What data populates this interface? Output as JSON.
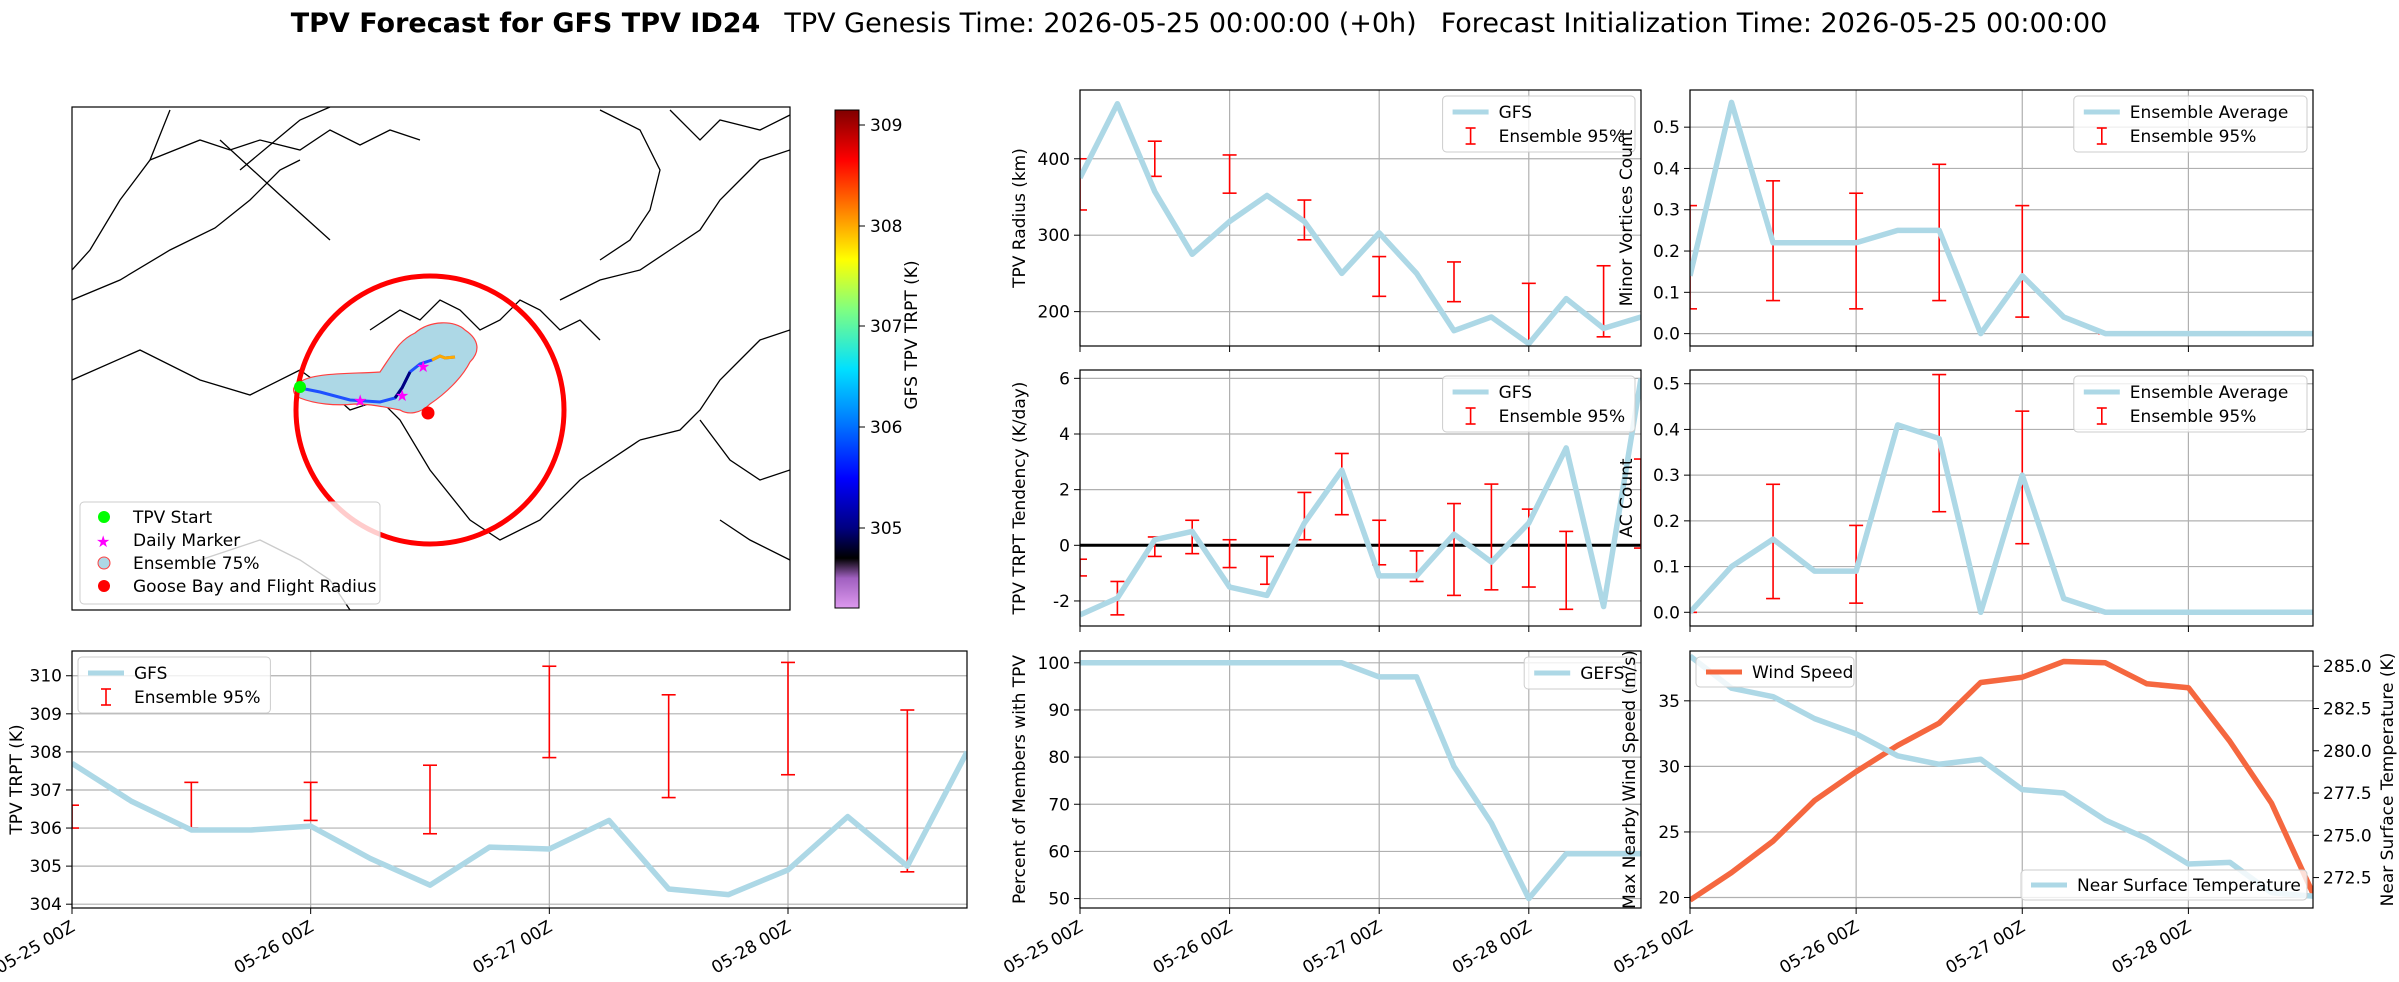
{
  "title": {
    "bold": "TPV Forecast for GFS TPV ID24",
    "genesis": "TPV Genesis Time: 2026-05-25 00:00:00 (+0h)",
    "init": "Forecast Initialization Time: 2026-05-25 00:00:00"
  },
  "colors": {
    "gfs": "#add8e6",
    "ens": "#ff0000",
    "wind": "#f5673f",
    "temp_axis": "#4169e1",
    "cone_fill": "#add8e6",
    "cone_edge": "#ff4040",
    "start_marker": "#00ff00",
    "daily_marker": "#ff00ff",
    "goose": "#ff0000"
  },
  "map_panel": {
    "colorbar_label": "GFS TPV TRPT (K)",
    "colorbar_ticks": [
      "305",
      "306",
      "307",
      "308",
      "309"
    ],
    "legend": [
      "TPV Start",
      "Daily Marker",
      "Ensemble 75%",
      "Goose Bay and Flight Radius"
    ]
  },
  "chart_data": [
    {
      "id": "radius",
      "type": "line",
      "ylabel": "TPV Radius (km)",
      "yticks": [
        200,
        300,
        400
      ],
      "ylim": [
        155,
        490
      ],
      "series": [
        {
          "name": "GFS",
          "x": [
            0,
            0.25,
            0.5,
            0.75,
            1,
            1.25,
            1.5,
            1.75,
            2,
            2.25,
            2.5,
            2.75,
            3,
            3.25,
            3.5,
            3.75
          ],
          "values": [
            375,
            472,
            357,
            275,
            318,
            352,
            318,
            250,
            303,
            250,
            175,
            193,
            158,
            217,
            178,
            193
          ]
        }
      ],
      "errorbars": {
        "name": "Ensemble 95%",
        "x": [
          0,
          0.5,
          1,
          1.5,
          2,
          2.5,
          3,
          3.5
        ],
        "low": [
          333,
          377,
          355,
          294,
          220,
          213,
          153,
          167
        ],
        "high": [
          400,
          423,
          405,
          346,
          272,
          265,
          237,
          260
        ]
      },
      "legend": [
        "GFS",
        "Ensemble 95%"
      ]
    },
    {
      "id": "minor",
      "type": "line",
      "ylabel": "Minor Vortices Count",
      "yticks": [
        0.0,
        0.1,
        0.2,
        0.3,
        0.4,
        0.5
      ],
      "ylim": [
        -0.03,
        0.59
      ],
      "series": [
        {
          "name": "Ensemble Average",
          "x": [
            0,
            0.25,
            0.5,
            0.75,
            1,
            1.25,
            1.5,
            1.75,
            2,
            2.25,
            2.5,
            2.75,
            3,
            3.25,
            3.5,
            3.75
          ],
          "values": [
            0.14,
            0.56,
            0.22,
            0.22,
            0.22,
            0.25,
            0.25,
            0.0,
            0.14,
            0.04,
            0.0,
            0.0,
            0.0,
            0.0,
            0.0,
            0.0
          ]
        }
      ],
      "errorbars": {
        "name": "Ensemble 95%",
        "x": [
          0,
          0.5,
          1,
          1.5,
          2,
          2.5,
          3,
          3.5
        ],
        "low": [
          0.06,
          0.08,
          0.06,
          0.08,
          0.04,
          0.0,
          0.0,
          0.0
        ],
        "high": [
          0.31,
          0.37,
          0.34,
          0.41,
          0.31,
          0.0,
          0.0,
          0.0
        ]
      },
      "legend": [
        "Ensemble Average",
        "Ensemble 95%"
      ]
    },
    {
      "id": "tendency",
      "type": "line",
      "ylabel": "TPV TRPT Tendency (K/day)",
      "yticks": [
        -2,
        0,
        2,
        4,
        6
      ],
      "ylim": [
        -2.9,
        6.3
      ],
      "zero_line": true,
      "series": [
        {
          "name": "GFS",
          "x": [
            0,
            0.25,
            0.5,
            0.75,
            1,
            1.25,
            1.5,
            1.75,
            2,
            2.25,
            2.5,
            2.75,
            3,
            3.25,
            3.5,
            3.75
          ],
          "values": [
            -2.5,
            -1.9,
            0.2,
            0.5,
            -1.5,
            -1.8,
            0.8,
            2.7,
            -1.1,
            -1.1,
            0.4,
            -0.6,
            0.8,
            3.5,
            -2.2,
            6.0
          ]
        }
      ],
      "errorbars": {
        "name": "Ensemble 95%",
        "x": [
          0,
          0.25,
          0.5,
          0.75,
          1,
          1.25,
          1.5,
          1.75,
          2,
          2.25,
          2.5,
          2.75,
          3,
          3.25,
          3.75
        ],
        "low": [
          -1.1,
          -2.5,
          -0.4,
          -0.3,
          -0.8,
          -1.4,
          0.2,
          1.1,
          -0.7,
          -1.3,
          -1.8,
          -1.6,
          -1.5,
          -2.3,
          -0.1
        ],
        "high": [
          -0.5,
          -1.3,
          0.3,
          0.9,
          0.2,
          -0.4,
          1.9,
          3.3,
          0.9,
          -0.2,
          1.5,
          2.2,
          1.3,
          0.5,
          3.1
        ]
      },
      "legend": [
        "GFS",
        "Ensemble 95%"
      ]
    },
    {
      "id": "ac",
      "type": "line",
      "ylabel": "AC Count",
      "yticks": [
        0.0,
        0.1,
        0.2,
        0.3,
        0.4,
        0.5
      ],
      "ylim": [
        -0.03,
        0.53
      ],
      "series": [
        {
          "name": "Ensemble Average",
          "x": [
            0,
            0.25,
            0.5,
            0.75,
            1,
            1.25,
            1.5,
            1.75,
            2,
            2.25,
            2.5,
            2.75,
            3,
            3.25,
            3.5,
            3.75
          ],
          "values": [
            0.0,
            0.1,
            0.16,
            0.09,
            0.09,
            0.41,
            0.38,
            0.0,
            0.3,
            0.03,
            0.0,
            0.0,
            0.0,
            0.0,
            0.0,
            0.0
          ]
        }
      ],
      "errorbars": {
        "name": "Ensemble 95%",
        "x": [
          0,
          0.5,
          1,
          1.5,
          2,
          2.5,
          3,
          3.5
        ],
        "low": [
          0.0,
          0.03,
          0.02,
          0.22,
          0.15,
          0.0,
          0.0,
          0.0
        ],
        "high": [
          0.0,
          0.28,
          0.19,
          0.52,
          0.44,
          0.0,
          0.0,
          0.0
        ]
      },
      "legend": [
        "Ensemble Average",
        "Ensemble 95%"
      ]
    },
    {
      "id": "trpt",
      "type": "line",
      "ylabel": "TPV TRPT (K)",
      "yticks": [
        304,
        305,
        306,
        307,
        308,
        309,
        310
      ],
      "ylim": [
        303.9,
        310.65
      ],
      "xticks": [
        "05-25 00Z",
        "05-26 00Z",
        "05-27 00Z",
        "05-28 00Z"
      ],
      "series": [
        {
          "name": "GFS",
          "x": [
            0,
            0.25,
            0.5,
            0.75,
            1,
            1.25,
            1.5,
            1.75,
            2,
            2.25,
            2.5,
            2.75,
            3,
            3.25,
            3.5,
            3.75
          ],
          "values": [
            307.7,
            306.7,
            305.95,
            305.95,
            306.05,
            305.2,
            304.5,
            305.5,
            305.45,
            306.2,
            304.4,
            304.25,
            304.9,
            306.3,
            305.0,
            308.0
          ]
        }
      ],
      "errorbars": {
        "name": "Ensemble 95%",
        "x": [
          0,
          0.25,
          0.5,
          0.75,
          1,
          1.25,
          1.5,
          1.75,
          2,
          2.25,
          2.5,
          2.75,
          3,
          3.25,
          3.5,
          3.75
        ],
        "low": [
          306.0,
          0,
          306.0,
          0,
          306.2,
          0,
          305.85,
          0,
          307.85,
          0,
          306.8,
          0,
          307.4,
          0,
          304.85,
          0
        ],
        "high": [
          306.6,
          0,
          307.2,
          0,
          307.2,
          0,
          307.65,
          0,
          310.25,
          0,
          309.5,
          0,
          310.35,
          0,
          309.1,
          0
        ]
      },
      "legend": [
        "GFS",
        "Ensemble 95%"
      ]
    },
    {
      "id": "percent",
      "type": "line",
      "ylabel": "Percent of Members with TPV",
      "yticks": [
        50,
        60,
        70,
        80,
        90,
        100
      ],
      "ylim": [
        48,
        102.5
      ],
      "xticks": [
        "05-25 00Z",
        "05-26 00Z",
        "05-27 00Z",
        "05-28 00Z"
      ],
      "series": [
        {
          "name": "GEFS",
          "x": [
            0,
            0.25,
            0.5,
            0.75,
            1,
            1.25,
            1.5,
            1.75,
            2,
            2.25,
            2.5,
            2.75,
            3,
            3.25,
            3.5,
            3.75
          ],
          "values": [
            100,
            100,
            100,
            100,
            100,
            100,
            100,
            100,
            97,
            97,
            78,
            66,
            50,
            59.5,
            59.5,
            59.5
          ]
        }
      ],
      "legend": [
        "GEFS"
      ]
    },
    {
      "id": "wind",
      "type": "line",
      "ylabel": "Max Nearby Wind Speed (m/s)",
      "y2label": "Near Surface Temperature (K)",
      "yticks": [
        20,
        25,
        30,
        35
      ],
      "ylim": [
        19.2,
        38.8
      ],
      "y2ticks": [
        272.5,
        275.0,
        277.5,
        280.0,
        282.5,
        285.0
      ],
      "y2lim": [
        270.7,
        285.9
      ],
      "xticks": [
        "05-25 00Z",
        "05-26 00Z",
        "05-27 00Z",
        "05-28 00Z"
      ],
      "series": [
        {
          "name": "Wind Speed",
          "axis": "y",
          "x": [
            0,
            0.25,
            0.5,
            0.75,
            1,
            1.25,
            1.5,
            1.75,
            2,
            2.25,
            2.5,
            2.75,
            3,
            3.25,
            3.5,
            3.75
          ],
          "values": [
            19.8,
            21.9,
            24.3,
            27.4,
            29.6,
            31.6,
            33.3,
            36.4,
            36.8,
            38.0,
            37.9,
            36.3,
            36.0,
            31.9,
            27.2,
            20.3
          ]
        },
        {
          "name": "Near Surface Temperature",
          "axis": "y2",
          "x": [
            0,
            0.25,
            0.5,
            0.75,
            1,
            1.25,
            1.5,
            1.75,
            2,
            2.25,
            2.5,
            2.75,
            3,
            3.25,
            3.5,
            3.75
          ],
          "values": [
            285.6,
            283.7,
            283.2,
            281.9,
            281.0,
            279.7,
            279.2,
            279.5,
            277.7,
            277.5,
            275.9,
            274.8,
            273.3,
            273.4,
            271.6,
            271.4
          ]
        }
      ],
      "legend": [
        "Wind Speed",
        "Near Surface Temperature"
      ]
    }
  ]
}
